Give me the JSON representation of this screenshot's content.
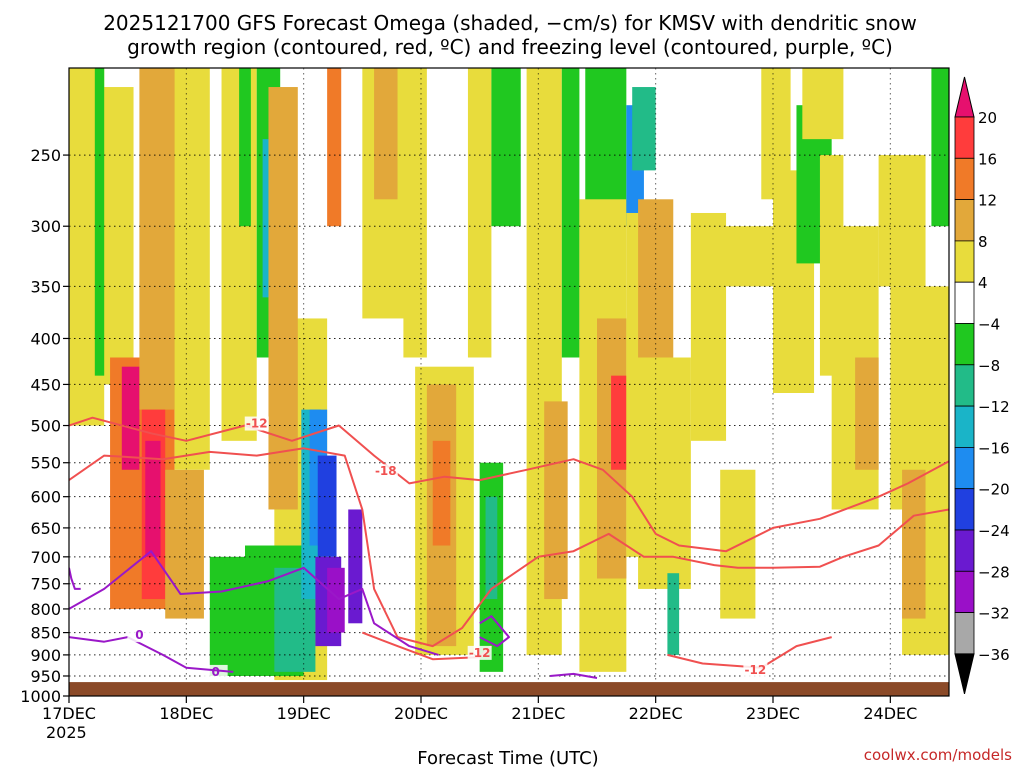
{
  "chart_data": {
    "type": "heatmap",
    "title_line1": "2025121700 GFS Forecast Omega (shaded, −cm/s) for KMSV with dendritic snow",
    "title_line2": "growth region (contoured, red, ºC) and freezing level (contoured, purple, ºC)",
    "xlabel": "Forecast Time (UTC)",
    "credit": "coolwx.com/models",
    "x_ticks": [
      "17DEC",
      "18DEC",
      "19DEC",
      "20DEC",
      "21DEC",
      "22DEC",
      "23DEC",
      "24DEC"
    ],
    "x_year": "2025",
    "x_range_days": [
      0,
      7.5
    ],
    "y_ticks": [
      "250",
      "300",
      "350",
      "400",
      "450",
      "500",
      "550",
      "600",
      "650",
      "700",
      "750",
      "800",
      "850",
      "900",
      "950",
      "1000"
    ],
    "y_range_hpa": [
      200,
      1000
    ],
    "y_scale": "log-pressure",
    "grid": "dotted",
    "colorbar": {
      "labels": [
        "20",
        "16",
        "12",
        "8",
        "4",
        "−4",
        "−8",
        "−12",
        "−16",
        "−20",
        "−24",
        "−28",
        "−32",
        "−36"
      ],
      "bins": [
        {
          "lo": 16,
          "hi": 20,
          "color": "#ff3c3c"
        },
        {
          "lo": 12,
          "hi": 16,
          "color": "#f07a28"
        },
        {
          "lo": 8,
          "hi": 12,
          "color": "#e2a83a"
        },
        {
          "lo": 4,
          "hi": 8,
          "color": "#e8dc3c"
        },
        {
          "lo": -4,
          "hi": 4,
          "color": "#ffffff"
        },
        {
          "lo": -8,
          "hi": -4,
          "color": "#20c820"
        },
        {
          "lo": -12,
          "hi": -8,
          "color": "#22bb88"
        },
        {
          "lo": -16,
          "hi": -12,
          "color": "#1ab4c8"
        },
        {
          "lo": -20,
          "hi": -16,
          "color": "#1e8cf0"
        },
        {
          "lo": -24,
          "hi": -20,
          "color": "#2040e0"
        },
        {
          "lo": -28,
          "hi": -24,
          "color": "#6a1ad0"
        },
        {
          "lo": -32,
          "hi": -28,
          "color": "#9a10c8"
        },
        {
          "lo": -36,
          "hi": -32,
          "color": "#a8a8a8"
        }
      ],
      "over_color": "#e6106e",
      "under_color": "#000000"
    },
    "terrain_color": "#8b4a28",
    "terrain_top_hpa": 965,
    "dgz_color": "#f05050",
    "freezing_color": "#9a18c8",
    "shaded_cells": [
      {
        "d0": 0.28,
        "d1": 0.55,
        "p0": 210,
        "p1": 450,
        "v": 7
      },
      {
        "d0": 0.35,
        "d1": 0.9,
        "p0": 420,
        "p1": 800,
        "v": 13
      },
      {
        "d0": 0.45,
        "d1": 0.6,
        "p0": 430,
        "p1": 560,
        "v": 21
      },
      {
        "d0": 0.6,
        "d1": 0.95,
        "p0": 200,
        "p1": 480,
        "v": 10
      },
      {
        "d0": 0.62,
        "d1": 0.82,
        "p0": 480,
        "p1": 780,
        "v": 17
      },
      {
        "d0": 0.65,
        "d1": 0.78,
        "p0": 520,
        "p1": 700,
        "v": 22
      },
      {
        "d0": 0.82,
        "d1": 1.15,
        "p0": 560,
        "p1": 820,
        "v": 9
      },
      {
        "d0": 0.9,
        "d1": 1.2,
        "p0": 200,
        "p1": 560,
        "v": 6
      },
      {
        "d0": 0.0,
        "d1": 0.3,
        "p0": 200,
        "p1": 500,
        "v": 5
      },
      {
        "d0": 0.22,
        "d1": 0.3,
        "p0": 200,
        "p1": 440,
        "v": -6
      },
      {
        "d0": 1.3,
        "d1": 1.6,
        "p0": 200,
        "p1": 520,
        "v": 6
      },
      {
        "d0": 1.45,
        "d1": 1.55,
        "p0": 200,
        "p1": 300,
        "v": -6
      },
      {
        "d0": 1.6,
        "d1": 1.8,
        "p0": 200,
        "p1": 420,
        "v": -7
      },
      {
        "d0": 1.65,
        "d1": 1.85,
        "p0": 240,
        "p1": 360,
        "v": -13
      },
      {
        "d0": 1.75,
        "d1": 2.2,
        "p0": 380,
        "p1": 960,
        "v": 5
      },
      {
        "d0": 1.7,
        "d1": 1.95,
        "p0": 210,
        "p1": 620,
        "v": 8
      },
      {
        "d0": 1.2,
        "d1": 1.5,
        "p0": 700,
        "p1": 950,
        "v": -5
      },
      {
        "d0": 1.5,
        "d1": 2.0,
        "p0": 680,
        "p1": 950,
        "v": -8
      },
      {
        "d0": 1.75,
        "d1": 2.1,
        "p0": 720,
        "p1": 940,
        "v": -10
      },
      {
        "d0": 1.98,
        "d1": 2.15,
        "p0": 480,
        "p1": 780,
        "v": -14
      },
      {
        "d0": 2.05,
        "d1": 2.2,
        "p0": 480,
        "p1": 680,
        "v": -18
      },
      {
        "d0": 2.12,
        "d1": 2.28,
        "p0": 540,
        "p1": 700,
        "v": -22
      },
      {
        "d0": 2.1,
        "d1": 2.32,
        "p0": 700,
        "p1": 880,
        "v": -26
      },
      {
        "d0": 2.2,
        "d1": 2.35,
        "p0": 720,
        "p1": 850,
        "v": -31
      },
      {
        "d0": 2.38,
        "d1": 2.5,
        "p0": 620,
        "p1": 830,
        "v": -27
      },
      {
        "d0": 2.2,
        "d1": 2.32,
        "p0": 200,
        "p1": 300,
        "v": 13
      },
      {
        "d0": 2.5,
        "d1": 2.95,
        "p0": 200,
        "p1": 380,
        "v": 6
      },
      {
        "d0": 2.6,
        "d1": 2.8,
        "p0": 200,
        "p1": 280,
        "v": 10
      },
      {
        "d0": 2.85,
        "d1": 3.05,
        "p0": 200,
        "p1": 420,
        "v": 6
      },
      {
        "d0": 2.95,
        "d1": 3.45,
        "p0": 430,
        "p1": 900,
        "v": 7
      },
      {
        "d0": 3.05,
        "d1": 3.3,
        "p0": 450,
        "p1": 880,
        "v": 11
      },
      {
        "d0": 3.1,
        "d1": 3.25,
        "p0": 520,
        "p1": 680,
        "v": 14
      },
      {
        "d0": 3.4,
        "d1": 3.6,
        "p0": 200,
        "p1": 420,
        "v": 6
      },
      {
        "d0": 3.5,
        "d1": 3.7,
        "p0": 550,
        "p1": 940,
        "v": -7
      },
      {
        "d0": 3.55,
        "d1": 3.65,
        "p0": 600,
        "p1": 780,
        "v": -10
      },
      {
        "d0": 3.9,
        "d1": 4.2,
        "p0": 200,
        "p1": 900,
        "v": 7
      },
      {
        "d0": 4.05,
        "d1": 4.25,
        "p0": 470,
        "p1": 780,
        "v": 11
      },
      {
        "d0": 4.2,
        "d1": 4.35,
        "p0": 200,
        "p1": 420,
        "v": -6
      },
      {
        "d0": 3.6,
        "d1": 3.85,
        "p0": 200,
        "p1": 300,
        "v": -6
      },
      {
        "d0": 4.4,
        "d1": 4.75,
        "p0": 200,
        "p1": 300,
        "v": -6
      },
      {
        "d0": 4.35,
        "d1": 4.75,
        "p0": 280,
        "p1": 940,
        "v": 6
      },
      {
        "d0": 4.5,
        "d1": 4.75,
        "p0": 380,
        "p1": 740,
        "v": 10
      },
      {
        "d0": 4.62,
        "d1": 4.75,
        "p0": 440,
        "p1": 560,
        "v": 17
      },
      {
        "d0": 4.75,
        "d1": 4.9,
        "p0": 220,
        "p1": 300,
        "v": -18
      },
      {
        "d0": 4.75,
        "d1": 4.95,
        "p0": 290,
        "p1": 700,
        "v": 6
      },
      {
        "d0": 4.8,
        "d1": 5.0,
        "p0": 210,
        "p1": 260,
        "v": -11
      },
      {
        "d0": 4.85,
        "d1": 5.15,
        "p0": 280,
        "p1": 420,
        "v": 9
      },
      {
        "d0": 4.85,
        "d1": 5.3,
        "p0": 420,
        "p1": 760,
        "v": 5
      },
      {
        "d0": 5.1,
        "d1": 5.2,
        "p0": 730,
        "p1": 900,
        "v": -9
      },
      {
        "d0": 5.3,
        "d1": 5.6,
        "p0": 290,
        "p1": 520,
        "v": 5
      },
      {
        "d0": 5.4,
        "d1": 6.1,
        "p0": 300,
        "p1": 350,
        "v": 5
      },
      {
        "d0": 5.55,
        "d1": 5.85,
        "p0": 560,
        "p1": 820,
        "v": 6
      },
      {
        "d0": 5.9,
        "d1": 6.15,
        "p0": 200,
        "p1": 280,
        "v": 6
      },
      {
        "d0": 6.0,
        "d1": 6.35,
        "p0": 260,
        "p1": 460,
        "v": 5
      },
      {
        "d0": 6.2,
        "d1": 6.5,
        "p0": 220,
        "p1": 330,
        "v": -6
      },
      {
        "d0": 6.25,
        "d1": 6.6,
        "p0": 200,
        "p1": 240,
        "v": 6
      },
      {
        "d0": 6.4,
        "d1": 6.6,
        "p0": 250,
        "p1": 440,
        "v": 5
      },
      {
        "d0": 6.5,
        "d1": 6.9,
        "p0": 300,
        "p1": 620,
        "v": 6
      },
      {
        "d0": 6.7,
        "d1": 6.9,
        "p0": 420,
        "p1": 560,
        "v": 8
      },
      {
        "d0": 6.9,
        "d1": 7.3,
        "p0": 250,
        "p1": 350,
        "v": 6
      },
      {
        "d0": 7.0,
        "d1": 7.5,
        "p0": 350,
        "p1": 620,
        "v": 6
      },
      {
        "d0": 7.1,
        "d1": 7.5,
        "p0": 440,
        "p1": 900,
        "v": 5
      },
      {
        "d0": 7.1,
        "d1": 7.3,
        "p0": 560,
        "p1": 820,
        "v": 10
      },
      {
        "d0": 7.35,
        "d1": 7.5,
        "p0": 200,
        "p1": 300,
        "v": -6
      }
    ],
    "dgz_lines": [
      {
        "label": "-12",
        "label_at": [
          1.6,
          500
        ],
        "points": [
          [
            0.0,
            500
          ],
          [
            0.2,
            490
          ],
          [
            0.7,
            510
          ],
          [
            1.0,
            520
          ],
          [
            1.5,
            500
          ],
          [
            1.9,
            520
          ],
          [
            2.3,
            500
          ],
          [
            2.6,
            540
          ],
          [
            2.9,
            580
          ],
          [
            3.2,
            570
          ],
          [
            3.5,
            575
          ],
          [
            3.9,
            560
          ],
          [
            4.3,
            545
          ],
          [
            4.55,
            560
          ],
          [
            4.8,
            600
          ],
          [
            5.0,
            660
          ],
          [
            5.2,
            680
          ],
          [
            5.6,
            690
          ],
          [
            6.0,
            650
          ],
          [
            6.4,
            635
          ],
          [
            6.9,
            600
          ],
          [
            7.15,
            580
          ],
          [
            7.5,
            548
          ]
        ]
      },
      {
        "label": "-18",
        "label_at": [
          2.7,
          565
        ],
        "points": [
          [
            0.0,
            575
          ],
          [
            0.3,
            540
          ],
          [
            0.8,
            545
          ],
          [
            1.2,
            535
          ],
          [
            1.6,
            540
          ],
          [
            2.0,
            530
          ],
          [
            2.35,
            540
          ],
          [
            2.5,
            620
          ],
          [
            2.6,
            760
          ],
          [
            2.8,
            860
          ],
          [
            3.1,
            880
          ],
          [
            3.35,
            840
          ],
          [
            3.6,
            760
          ],
          [
            4.0,
            700
          ],
          [
            4.3,
            690
          ],
          [
            4.6,
            660
          ],
          [
            4.9,
            700
          ],
          [
            5.15,
            700
          ],
          [
            5.5,
            715
          ],
          [
            5.7,
            720
          ],
          [
            6.0,
            720
          ],
          [
            6.4,
            718
          ],
          [
            6.6,
            700
          ],
          [
            6.9,
            680
          ],
          [
            7.2,
            630
          ],
          [
            7.5,
            620
          ]
        ]
      },
      {
        "label": "-12",
        "label_at": [
          3.5,
          900
        ],
        "points": [
          [
            2.5,
            850
          ],
          [
            2.8,
            880
          ],
          [
            3.1,
            910
          ],
          [
            3.5,
            905
          ],
          [
            3.6,
            880
          ]
        ]
      },
      {
        "label": "-12",
        "label_at": [
          5.85,
          940
        ],
        "points": [
          [
            5.1,
            900
          ],
          [
            5.4,
            920
          ],
          [
            5.9,
            930
          ],
          [
            6.2,
            880
          ],
          [
            6.5,
            860
          ]
        ]
      }
    ],
    "freezing_lines": [
      {
        "label": "0",
        "label_at": [
          1.25,
          945
        ],
        "points": [
          [
            0.0,
            800
          ],
          [
            0.3,
            760
          ],
          [
            0.7,
            690
          ],
          [
            0.95,
            770
          ],
          [
            1.3,
            765
          ],
          [
            1.7,
            745
          ],
          [
            2.0,
            720
          ],
          [
            2.3,
            780
          ],
          [
            2.5,
            760
          ],
          [
            2.6,
            830
          ],
          [
            2.9,
            880
          ],
          [
            3.15,
            900
          ]
        ]
      },
      {
        "label": "0",
        "label_at": [
          0.6,
          860
        ],
        "points": [
          [
            0.0,
            860
          ],
          [
            0.3,
            870
          ],
          [
            0.5,
            860
          ],
          [
            0.8,
            900
          ],
          [
            1.0,
            930
          ],
          [
            1.4,
            940
          ]
        ]
      },
      {
        "label": "",
        "label_at": [
          0,
          0
        ],
        "points": [
          [
            0.0,
            720
          ],
          [
            0.02,
            740
          ],
          [
            0.05,
            760
          ],
          [
            0.1,
            760
          ]
        ]
      },
      {
        "label": "",
        "label_at": [
          0,
          0
        ],
        "points": [
          [
            3.5,
            830
          ],
          [
            3.6,
            815
          ],
          [
            3.75,
            860
          ],
          [
            3.65,
            880
          ],
          [
            3.5,
            860
          ]
        ]
      },
      {
        "label": "",
        "label_at": [
          0,
          0
        ],
        "points": [
          [
            4.1,
            950
          ],
          [
            4.3,
            945
          ],
          [
            4.5,
            955
          ]
        ]
      }
    ]
  }
}
